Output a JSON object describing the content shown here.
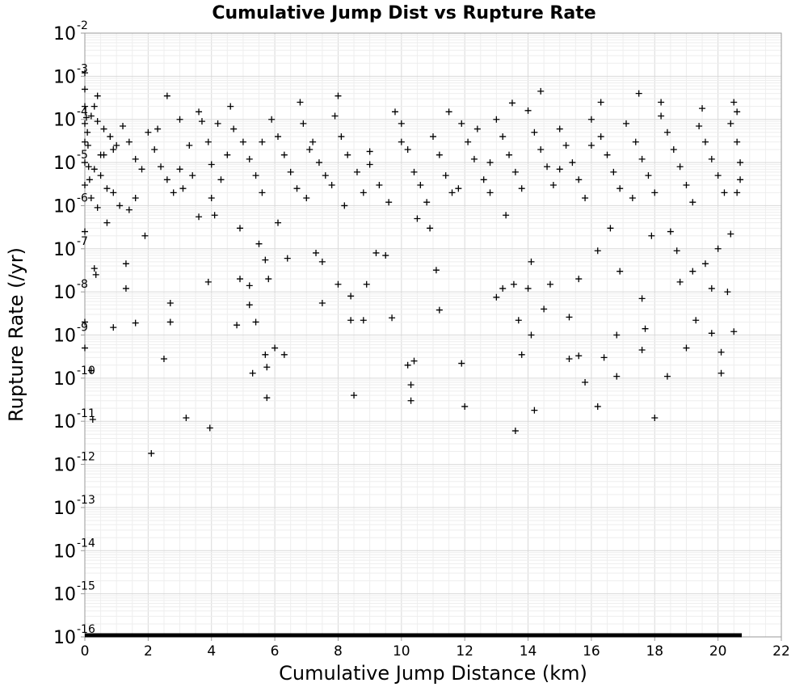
{
  "chart_data": {
    "type": "scatter",
    "title": "Cumulative Jump Dist vs Rupture Rate",
    "xlabel": "Cumulative Jump Distance (km)",
    "ylabel": "Rupture Rate (/yr)",
    "x_scale": "linear",
    "y_scale": "log",
    "xlim": [
      0,
      22
    ],
    "ylim": [
      1e-16,
      0.01
    ],
    "x_ticks": [
      "0",
      "2",
      "4",
      "6",
      "8",
      "10",
      "12",
      "14",
      "16",
      "18",
      "20",
      "22"
    ],
    "y_ticks": [
      {
        "base": "10",
        "exp": "-2"
      },
      {
        "base": "10",
        "exp": "-3"
      },
      {
        "base": "10",
        "exp": "-4"
      },
      {
        "base": "10",
        "exp": "-5"
      },
      {
        "base": "10",
        "exp": "-6"
      },
      {
        "base": "10",
        "exp": "-7"
      },
      {
        "base": "10",
        "exp": "-8"
      },
      {
        "base": "10",
        "exp": "-9"
      },
      {
        "base": "10",
        "exp": "-10"
      },
      {
        "base": "10",
        "exp": "-11"
      },
      {
        "base": "10",
        "exp": "-12"
      },
      {
        "base": "10",
        "exp": "-13"
      },
      {
        "base": "10",
        "exp": "-14"
      },
      {
        "base": "10",
        "exp": "-15"
      },
      {
        "base": "10",
        "exp": "-16"
      }
    ],
    "grid": true,
    "marker": "plus",
    "marker_color": "#000000",
    "floor_band": {
      "y": 1e-16,
      "x_range": [
        0,
        20.75
      ]
    },
    "points": [
      [
        0.0,
        0.0012
      ],
      [
        0.0,
        0.0005
      ],
      [
        0.0,
        0.0002
      ],
      [
        0.0,
        8e-05
      ],
      [
        0.0,
        3e-05
      ],
      [
        0.0,
        1e-05
      ],
      [
        0.0,
        3e-06
      ],
      [
        0.0,
        2.5e-07
      ],
      [
        0.0,
        2e-09
      ],
      [
        0.0,
        5e-10
      ],
      [
        0.05,
        0.00011
      ],
      [
        0.08,
        5e-05
      ],
      [
        0.1,
        2.5e-05
      ],
      [
        0.12,
        8e-06
      ],
      [
        0.15,
        4e-06
      ],
      [
        0.2,
        1.5e-10
      ],
      [
        0.25,
        1.1e-11
      ],
      [
        0.3,
        3.5e-08
      ],
      [
        0.35,
        2.5e-08
      ],
      [
        0.4,
        0.00035
      ],
      [
        0.4,
        9e-07
      ],
      [
        0.5,
        1.5e-05
      ],
      [
        0.7,
        4e-07
      ],
      [
        0.9,
        1.5e-09
      ],
      [
        1.0,
        2.5e-05
      ],
      [
        1.1,
        1e-06
      ],
      [
        1.3,
        4.5e-08
      ],
      [
        1.3,
        1.2e-08
      ],
      [
        1.4,
        8e-07
      ],
      [
        1.6,
        1.5e-06
      ],
      [
        1.6,
        1.9e-09
      ],
      [
        1.9,
        2e-07
      ],
      [
        2.1,
        1.8e-12
      ],
      [
        2.3,
        6e-05
      ],
      [
        2.5,
        2.8e-10
      ],
      [
        2.6,
        0.00035
      ],
      [
        2.7,
        5.5e-09
      ],
      [
        2.7,
        2e-09
      ],
      [
        3.0,
        0.0001
      ],
      [
        3.2,
        1.2e-11
      ],
      [
        3.3,
        2.5e-05
      ],
      [
        3.6,
        0.00015
      ],
      [
        3.6,
        5.5e-07
      ],
      [
        3.9,
        1.7e-08
      ],
      [
        3.95,
        7e-12
      ],
      [
        4.0,
        1.5e-06
      ],
      [
        4.1,
        6e-07
      ],
      [
        4.2,
        8e-05
      ],
      [
        4.5,
        1.5e-05
      ],
      [
        4.8,
        1.7e-09
      ],
      [
        4.9,
        3e-07
      ],
      [
        4.9,
        2e-08
      ],
      [
        5.2,
        1.4e-08
      ],
      [
        5.2,
        5e-09
      ],
      [
        5.3,
        1.3e-10
      ],
      [
        5.4,
        2e-09
      ],
      [
        5.5,
        1.3e-07
      ],
      [
        5.6,
        3e-05
      ],
      [
        5.7,
        5.5e-08
      ],
      [
        5.7,
        3.5e-10
      ],
      [
        5.75,
        1.8e-10
      ],
      [
        5.75,
        3.5e-11
      ],
      [
        5.8,
        2e-08
      ],
      [
        6.0,
        5e-10
      ],
      [
        6.1,
        4e-07
      ],
      [
        6.3,
        3.5e-10
      ],
      [
        6.4,
        6e-08
      ],
      [
        6.8,
        0.00025
      ],
      [
        7.0,
        1.5e-06
      ],
      [
        7.2,
        3e-05
      ],
      [
        7.3,
        8e-08
      ],
      [
        7.5,
        5e-08
      ],
      [
        7.5,
        5.5e-09
      ],
      [
        7.8,
        3e-06
      ],
      [
        8.0,
        0.00035
      ],
      [
        8.0,
        1.5e-08
      ],
      [
        8.2,
        1e-06
      ],
      [
        8.4,
        8e-09
      ],
      [
        8.4,
        2.2e-09
      ],
      [
        8.5,
        4e-11
      ],
      [
        8.8,
        2.2e-09
      ],
      [
        8.9,
        1.5e-08
      ],
      [
        9.0,
        1.8e-05
      ],
      [
        9.2,
        8e-08
      ],
      [
        9.5,
        7e-08
      ],
      [
        9.7,
        2.5e-09
      ],
      [
        9.8,
        0.00015
      ],
      [
        10.0,
        3e-05
      ],
      [
        10.2,
        2e-10
      ],
      [
        10.3,
        7e-11
      ],
      [
        10.3,
        3e-11
      ],
      [
        10.4,
        2.5e-10
      ],
      [
        10.5,
        5e-07
      ],
      [
        10.9,
        3e-07
      ],
      [
        11.1,
        3.2e-08
      ],
      [
        11.2,
        3.8e-09
      ],
      [
        11.5,
        0.00015
      ],
      [
        11.8,
        2.5e-06
      ],
      [
        11.9,
        2.2e-10
      ],
      [
        12.0,
        2.2e-11
      ],
      [
        12.4,
        6e-05
      ],
      [
        12.8,
        1e-05
      ],
      [
        13.0,
        7.5e-09
      ],
      [
        13.2,
        1.2e-08
      ],
      [
        13.3,
        6e-07
      ],
      [
        13.5,
        0.00024
      ],
      [
        13.55,
        1.5e-08
      ],
      [
        13.6,
        6e-12
      ],
      [
        13.7,
        2.2e-09
      ],
      [
        13.8,
        3.5e-10
      ],
      [
        14.0,
        1.2e-08
      ],
      [
        14.1,
        5e-08
      ],
      [
        14.1,
        1e-09
      ],
      [
        14.2,
        1.8e-11
      ],
      [
        14.4,
        0.00045
      ],
      [
        14.5,
        4e-09
      ],
      [
        14.7,
        1.5e-08
      ],
      [
        15.0,
        7e-06
      ],
      [
        15.3,
        2.6e-09
      ],
      [
        15.3,
        2.8e-10
      ],
      [
        15.6,
        2e-08
      ],
      [
        15.6,
        3.3e-10
      ],
      [
        15.8,
        8e-11
      ],
      [
        16.0,
        2.5e-05
      ],
      [
        16.2,
        9e-08
      ],
      [
        16.2,
        2.2e-11
      ],
      [
        16.3,
        0.00025
      ],
      [
        16.4,
        3e-10
      ],
      [
        16.6,
        3e-07
      ],
      [
        16.8,
        1e-09
      ],
      [
        16.8,
        1.1e-10
      ],
      [
        16.9,
        3e-08
      ],
      [
        17.3,
        1.5e-06
      ],
      [
        17.5,
        0.0004
      ],
      [
        17.6,
        7e-09
      ],
      [
        17.6,
        4.5e-10
      ],
      [
        17.7,
        1.4e-09
      ],
      [
        17.9,
        2e-07
      ],
      [
        18.0,
        1.2e-11
      ],
      [
        18.2,
        0.00025
      ],
      [
        18.4,
        1.1e-10
      ],
      [
        18.5,
        2.5e-07
      ],
      [
        18.7,
        9e-08
      ],
      [
        18.8,
        1.7e-08
      ],
      [
        19.0,
        5e-10
      ],
      [
        19.2,
        3e-08
      ],
      [
        19.3,
        2.2e-09
      ],
      [
        19.5,
        0.00018
      ],
      [
        19.6,
        4.5e-08
      ],
      [
        19.8,
        1.2e-08
      ],
      [
        19.8,
        1.1e-09
      ],
      [
        20.0,
        1e-07
      ],
      [
        20.1,
        4e-10
      ],
      [
        20.1,
        1.3e-10
      ],
      [
        20.3,
        1e-08
      ],
      [
        20.4,
        2.2e-07
      ],
      [
        20.5,
        1.2e-09
      ],
      [
        20.6,
        0.00015
      ],
      [
        20.6,
        2e-06
      ],
      [
        0.3,
        0.0002
      ],
      [
        0.2,
        0.00012
      ],
      [
        0.4,
        9e-05
      ],
      [
        0.6,
        6e-05
      ],
      [
        0.8,
        4e-05
      ],
      [
        0.9,
        2e-05
      ],
      [
        0.6,
        1.5e-05
      ],
      [
        0.3,
        7e-06
      ],
      [
        0.5,
        5e-06
      ],
      [
        0.7,
        2.5e-06
      ],
      [
        0.9,
        2e-06
      ],
      [
        0.2,
        1.5e-06
      ],
      [
        1.2,
        7e-05
      ],
      [
        1.4,
        3e-05
      ],
      [
        1.6,
        1.2e-05
      ],
      [
        1.8,
        7e-06
      ],
      [
        2.0,
        5e-05
      ],
      [
        2.2,
        2e-05
      ],
      [
        2.4,
        8e-06
      ],
      [
        2.6,
        4e-06
      ],
      [
        2.8,
        2e-06
      ],
      [
        3.0,
        7e-06
      ],
      [
        3.1,
        2.5e-06
      ],
      [
        3.4,
        5e-06
      ],
      [
        3.7,
        9e-05
      ],
      [
        3.9,
        3e-05
      ],
      [
        4.0,
        9e-06
      ],
      [
        4.3,
        4e-06
      ],
      [
        4.6,
        0.0002
      ],
      [
        4.7,
        6e-05
      ],
      [
        5.0,
        3e-05
      ],
      [
        5.2,
        1.2e-05
      ],
      [
        5.4,
        5e-06
      ],
      [
        5.6,
        2e-06
      ],
      [
        5.9,
        0.0001
      ],
      [
        6.1,
        4e-05
      ],
      [
        6.3,
        1.5e-05
      ],
      [
        6.5,
        6e-06
      ],
      [
        6.7,
        2.5e-06
      ],
      [
        6.9,
        8e-05
      ],
      [
        7.1,
        2e-05
      ],
      [
        7.4,
        1e-05
      ],
      [
        7.6,
        5e-06
      ],
      [
        7.9,
        0.00012
      ],
      [
        8.1,
        4e-05
      ],
      [
        8.3,
        1.5e-05
      ],
      [
        8.6,
        6e-06
      ],
      [
        8.8,
        2e-06
      ],
      [
        9.0,
        9e-06
      ],
      [
        9.3,
        3e-06
      ],
      [
        9.6,
        1.2e-06
      ],
      [
        10.0,
        8e-05
      ],
      [
        10.2,
        2e-05
      ],
      [
        10.4,
        6e-06
      ],
      [
        10.6,
        3e-06
      ],
      [
        10.8,
        1.2e-06
      ],
      [
        11.0,
        4e-05
      ],
      [
        11.2,
        1.5e-05
      ],
      [
        11.4,
        5e-06
      ],
      [
        11.6,
        2e-06
      ],
      [
        11.9,
        8e-05
      ],
      [
        12.1,
        3e-05
      ],
      [
        12.3,
        1.2e-05
      ],
      [
        12.6,
        4e-06
      ],
      [
        12.8,
        2e-06
      ],
      [
        13.0,
        0.0001
      ],
      [
        13.2,
        4e-05
      ],
      [
        13.4,
        1.5e-05
      ],
      [
        13.6,
        6e-06
      ],
      [
        13.8,
        2.5e-06
      ],
      [
        14.0,
        0.00016
      ],
      [
        14.2,
        5e-05
      ],
      [
        14.4,
        2e-05
      ],
      [
        14.6,
        8e-06
      ],
      [
        14.8,
        3e-06
      ],
      [
        15.0,
        6e-05
      ],
      [
        15.2,
        2.5e-05
      ],
      [
        15.4,
        1e-05
      ],
      [
        15.6,
        4e-06
      ],
      [
        15.8,
        1.5e-06
      ],
      [
        16.0,
        0.0001
      ],
      [
        16.3,
        4e-05
      ],
      [
        16.5,
        1.5e-05
      ],
      [
        16.7,
        6e-06
      ],
      [
        16.9,
        2.5e-06
      ],
      [
        17.1,
        8e-05
      ],
      [
        17.4,
        3e-05
      ],
      [
        17.6,
        1.2e-05
      ],
      [
        17.8,
        5e-06
      ],
      [
        18.0,
        2e-06
      ],
      [
        18.2,
        0.00012
      ],
      [
        18.4,
        5e-05
      ],
      [
        18.6,
        2e-05
      ],
      [
        18.8,
        8e-06
      ],
      [
        19.0,
        3e-06
      ],
      [
        19.2,
        1.2e-06
      ],
      [
        19.4,
        7e-05
      ],
      [
        19.6,
        3e-05
      ],
      [
        19.8,
        1.2e-05
      ],
      [
        20.0,
        5e-06
      ],
      [
        20.2,
        2e-06
      ],
      [
        20.4,
        8e-05
      ],
      [
        20.6,
        3e-05
      ],
      [
        20.7,
        1e-05
      ],
      [
        20.7,
        4e-06
      ],
      [
        20.5,
        0.00025
      ]
    ]
  }
}
